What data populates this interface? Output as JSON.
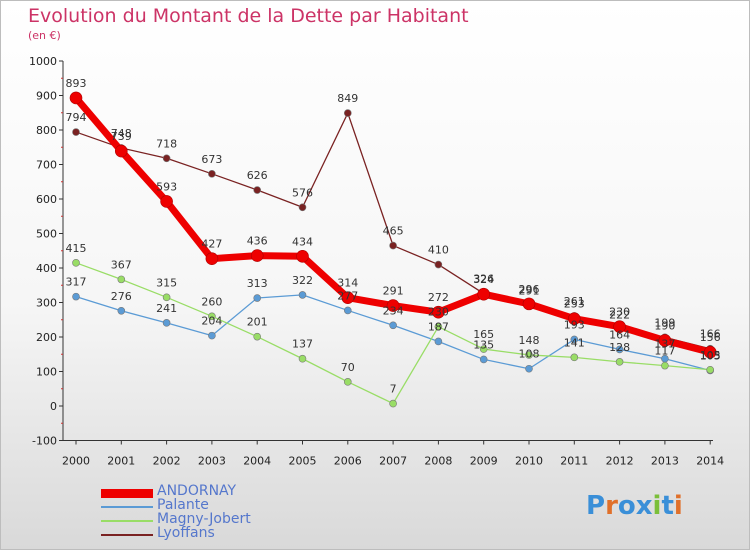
{
  "title": "Evolution du Montant de la Dette par Habitant",
  "subtitle": "(en €)",
  "logo": {
    "text": "Proxiti",
    "letters": [
      "P",
      "r",
      "o",
      "x",
      "i",
      "t",
      "i"
    ],
    "colors": [
      "#3a8fd8",
      "#e0702a",
      "#3a8fd8",
      "#3a8fd8",
      "#7bbf3a",
      "#3a8fd8",
      "#e0702a"
    ]
  },
  "chart_data": {
    "type": "line",
    "title": "Evolution du Montant de la Dette par Habitant",
    "ylabel": "(en €)",
    "xlabel": "",
    "x": [
      "2000",
      "2001",
      "2002",
      "2003",
      "2004",
      "2005",
      "2006",
      "2007",
      "2008",
      "2009",
      "2010",
      "2011",
      "2012",
      "2013",
      "2014"
    ],
    "ylim": [
      -100,
      1000
    ],
    "yticks": [
      "-100",
      "0",
      "100",
      "200",
      "300",
      "400",
      "500",
      "600",
      "700",
      "800",
      "900",
      "1000"
    ],
    "grid": false,
    "legend_position": "bottom-left",
    "series": [
      {
        "name": "ANDORNAY",
        "color": "#ee0000",
        "emphasis": true,
        "values": [
          893,
          739,
          593,
          427,
          436,
          434,
          314,
          291,
          272,
          324,
          296,
          253,
          230,
          190,
          156
        ],
        "labels": [
          "893",
          "739",
          "593",
          "427",
          "436",
          "434",
          "314",
          "291",
          "272",
          "324",
          "296",
          "253",
          "230",
          "190",
          "156"
        ]
      },
      {
        "name": "Palante",
        "color": "#5b9bd5",
        "values": [
          317,
          276,
          241,
          204,
          313,
          322,
          277,
          234,
          187,
          135,
          108,
          193,
          164,
          137,
          103
        ],
        "labels": [
          "317",
          "276",
          "241",
          "204",
          "313",
          "322",
          "277",
          "234",
          "187",
          "135",
          "108",
          "193",
          "164",
          "137",
          "103"
        ]
      },
      {
        "name": "Magny-Jobert",
        "color": "#99dd66",
        "values": [
          415,
          367,
          315,
          260,
          201,
          137,
          70,
          7,
          230,
          165,
          148,
          141,
          128,
          117,
          105
        ],
        "labels": [
          "415",
          "367",
          "315",
          "260",
          "201",
          "137",
          "70",
          "7",
          "230",
          "165",
          "148",
          "141",
          "128",
          "117",
          "105"
        ]
      },
      {
        "name": "Lyoffans",
        "color": "#7a2222",
        "values": [
          794,
          748,
          718,
          673,
          626,
          576,
          849,
          465,
          410,
          326,
          291,
          261,
          222,
          199,
          166
        ],
        "labels": [
          "794",
          "748",
          "718",
          "673",
          "626",
          "576",
          "849",
          "465",
          "410",
          "326",
          "291",
          "261",
          "222",
          "199",
          "166"
        ]
      }
    ]
  }
}
